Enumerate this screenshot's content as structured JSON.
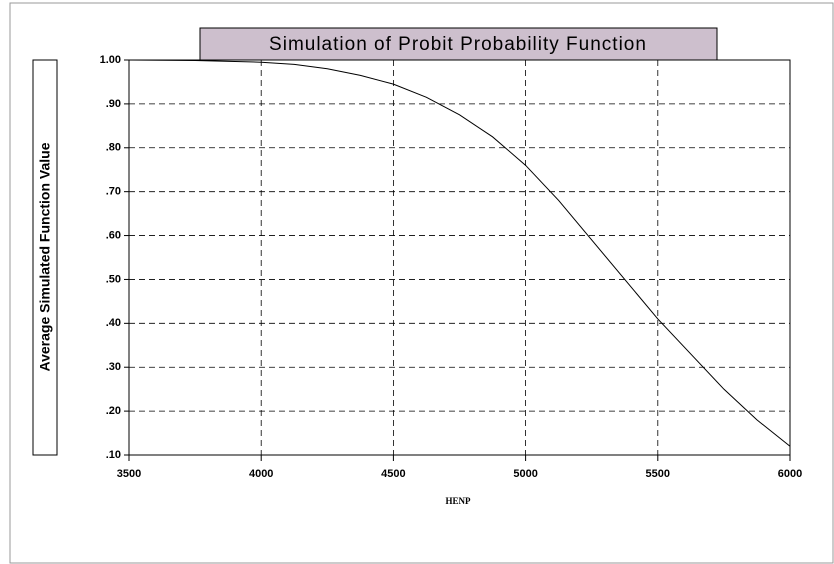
{
  "chart_data": {
    "type": "line",
    "title": "Simulation of Probit Probability Function",
    "x_label": "HENP",
    "y_label": "Average Simulated Function Value",
    "x": [
      3500,
      3750,
      4000,
      4125,
      4250,
      4375,
      4500,
      4625,
      4750,
      4875,
      5000,
      5125,
      5250,
      5375,
      5500,
      5625,
      5750,
      5875,
      6000
    ],
    "series": [
      {
        "color": "#000000",
        "values": [
          1.0,
          0.999,
          0.995,
          0.99,
          0.98,
          0.965,
          0.945,
          0.915,
          0.875,
          0.825,
          0.76,
          0.68,
          0.59,
          0.5,
          0.41,
          0.33,
          0.25,
          0.18,
          0.12
        ]
      }
    ],
    "xlim": [
      3500,
      6000
    ],
    "xticks": [
      3500,
      4000,
      4500,
      5000,
      5500,
      6000
    ],
    "ylim": [
      0.1,
      1.0
    ],
    "yticks": [
      {
        "value": 0.1,
        "label": ".10"
      },
      {
        "value": 0.2,
        "label": ".20"
      },
      {
        "value": 0.3,
        "label": ".30"
      },
      {
        "value": 0.4,
        "label": ".40"
      },
      {
        "value": 0.5,
        "label": ".50"
      },
      {
        "value": 0.6,
        "label": ".60"
      },
      {
        "value": 0.7,
        "label": ".70"
      },
      {
        "value": 0.8,
        "label": ".80"
      },
      {
        "value": 0.9,
        "label": ".90"
      },
      {
        "value": 1.0,
        "label": "1.00"
      }
    ],
    "grid": true
  }
}
